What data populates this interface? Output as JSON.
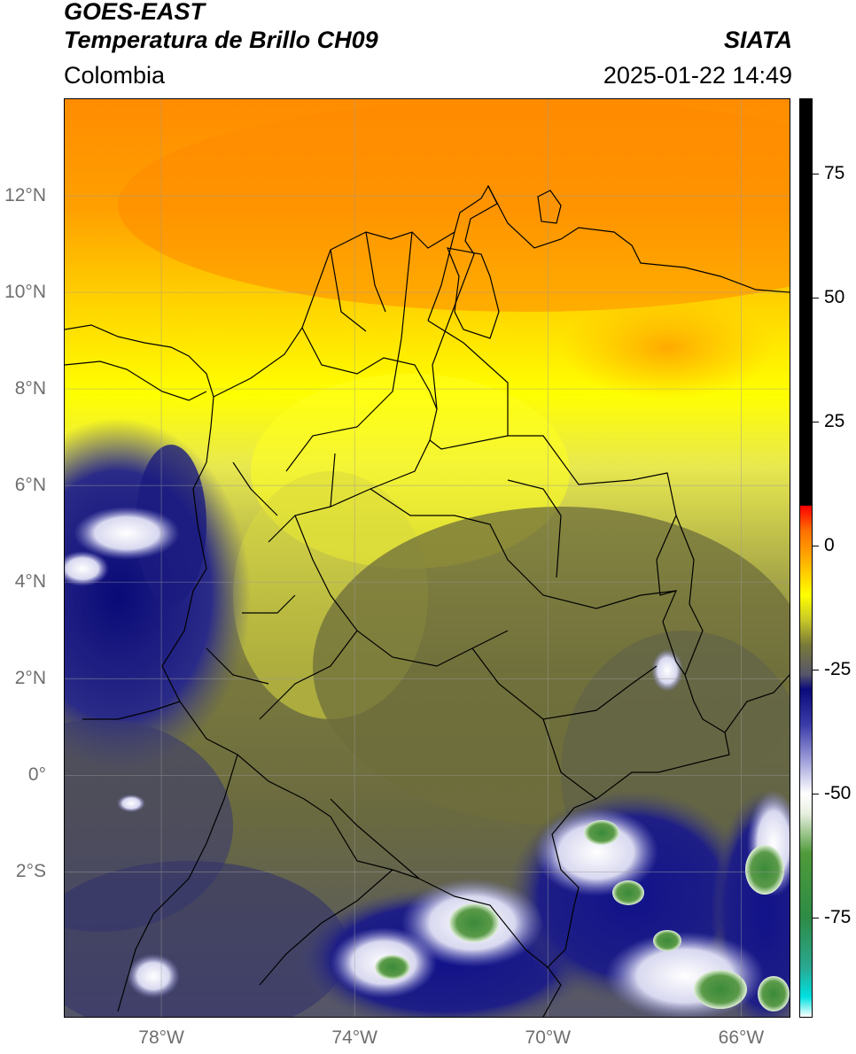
{
  "header": {
    "title_line1": "GOES-EAST",
    "title_line2": "Temperatura de Brillo CH09",
    "organization": "SIATA",
    "region": "Colombia",
    "datetime": "2025-01-22 14:49"
  },
  "map": {
    "extent": {
      "lon_min": -80,
      "lon_max": -65,
      "lat_min": -5,
      "lat_max": 14
    },
    "latitude_labels": [
      {
        "value": 12,
        "text": "12°N"
      },
      {
        "value": 10,
        "text": "10°N"
      },
      {
        "value": 8,
        "text": "8°N"
      },
      {
        "value": 6,
        "text": "6°N"
      },
      {
        "value": 4,
        "text": "4°N"
      },
      {
        "value": 2,
        "text": "2°N"
      },
      {
        "value": 0,
        "text": "0°"
      },
      {
        "value": -2,
        "text": "2°S"
      }
    ],
    "longitude_labels": [
      {
        "value": -78,
        "text": "78°W"
      },
      {
        "value": -74,
        "text": "74°W"
      },
      {
        "value": -70,
        "text": "70°W"
      },
      {
        "value": -66,
        "text": "66°W"
      }
    ],
    "gridlines": true,
    "colors": {
      "warm_orange": "#ff8c00",
      "yellow": "#ffff00",
      "olive": "#6b6c3c",
      "dark_blue": "#0a0a7a",
      "white": "#ffffff",
      "green": "#3c8c3c"
    }
  },
  "colorbar": {
    "range": [
      -95,
      90
    ],
    "ticks": [
      {
        "value": 75,
        "text": "75"
      },
      {
        "value": 50,
        "text": "50"
      },
      {
        "value": 25,
        "text": "25"
      },
      {
        "value": 0,
        "text": "0"
      },
      {
        "value": -25,
        "text": "-25"
      },
      {
        "value": -50,
        "text": "-50"
      },
      {
        "value": -75,
        "text": "-75"
      }
    ],
    "stops": [
      {
        "value": -95,
        "color": "#ffffff"
      },
      {
        "value": -91,
        "color": "#00e0e0"
      },
      {
        "value": -85,
        "color": "#2aa890"
      },
      {
        "value": -75,
        "color": "#2e8b45"
      },
      {
        "value": -62,
        "color": "#4f9a3a"
      },
      {
        "value": -54,
        "color": "#e8f0e0"
      },
      {
        "value": -50,
        "color": "#ffffff"
      },
      {
        "value": -43,
        "color": "#9a9ad8"
      },
      {
        "value": -36,
        "color": "#3a3aa8"
      },
      {
        "value": -29,
        "color": "#0a0a7a"
      },
      {
        "value": -26,
        "color": "#55556a"
      },
      {
        "value": -20,
        "color": "#7a7a3a"
      },
      {
        "value": -15,
        "color": "#c8c828"
      },
      {
        "value": -10,
        "color": "#ffff00"
      },
      {
        "value": -3,
        "color": "#ffb000"
      },
      {
        "value": 3,
        "color": "#ff7000"
      },
      {
        "value": 8,
        "color": "#ff0000"
      },
      {
        "value": 8.1,
        "color": "#000000"
      },
      {
        "value": 90,
        "color": "#000000"
      }
    ]
  }
}
